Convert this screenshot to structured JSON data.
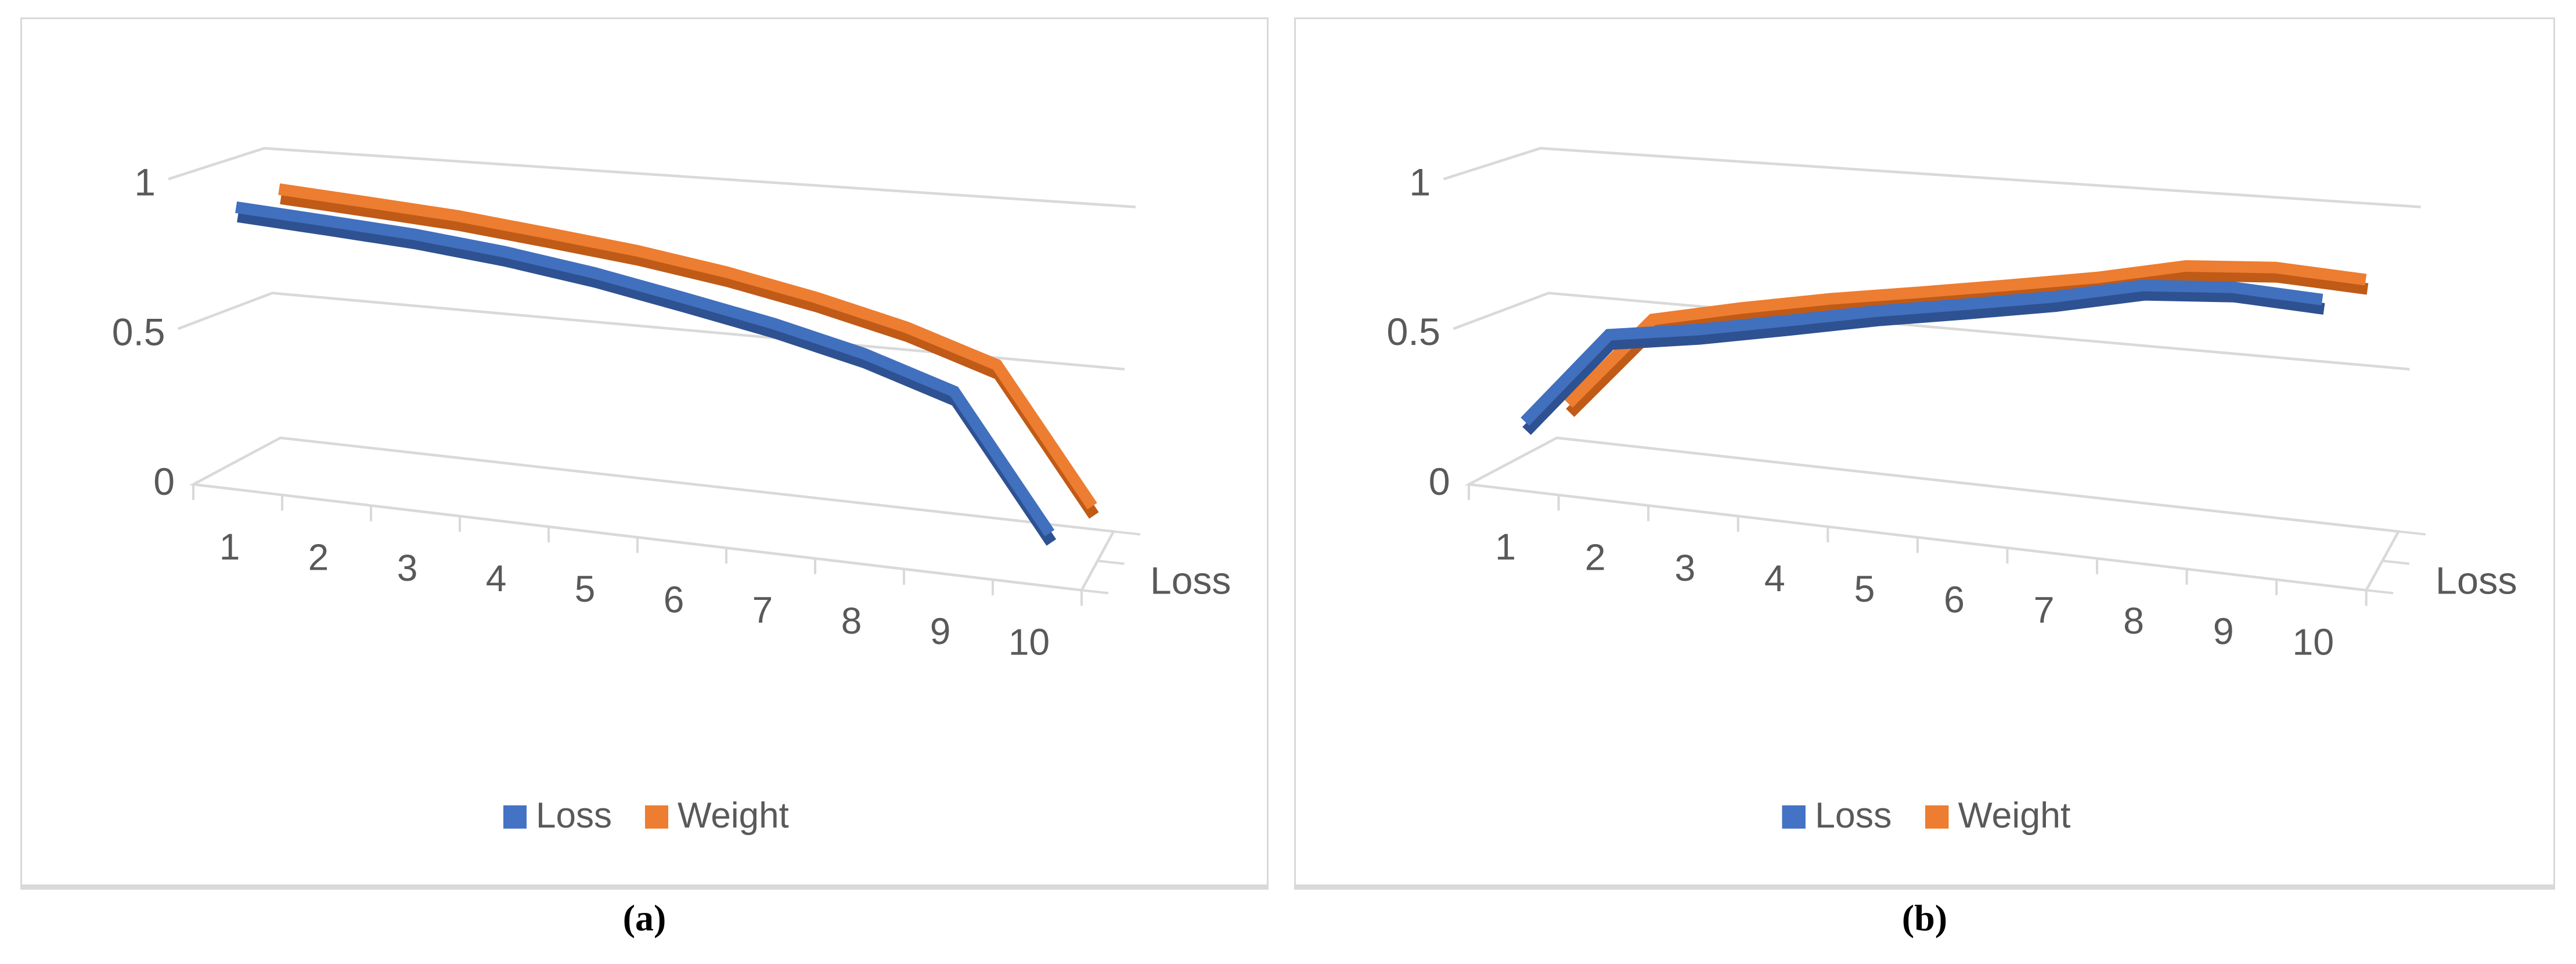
{
  "figure": {
    "background": "#ffffff",
    "panel_border_color": "#d9d9d9"
  },
  "colors": {
    "axis_text": "#595959",
    "gridline": "#d9d9d9",
    "loss_series": "#4472C4",
    "weight_series": "#ED7D31"
  },
  "chart_data": [
    {
      "type": "line",
      "projection": "3d",
      "caption": "(a)",
      "categories": [
        "1",
        "2",
        "3",
        "4",
        "5",
        "6",
        "7",
        "8",
        "9",
        "10"
      ],
      "value_axis": {
        "tick_labels": [
          "0",
          "0.5",
          "1"
        ],
        "range": [
          0,
          1
        ],
        "grid": true
      },
      "depth_axis_label": "Loss",
      "legend_position": "bottom",
      "series": [
        {
          "name": "Loss",
          "color": "#4170BE",
          "shade": "#2E5191",
          "legend_color": "#4472C4",
          "values": [
            0.93,
            0.9,
            0.87,
            0.83,
            0.78,
            0.72,
            0.66,
            0.59,
            0.5,
            0.12
          ]
        },
        {
          "name": "Weight",
          "color": "#ED7D31",
          "shade": "#C05A17",
          "legend_color": "#ED7D31",
          "values": [
            0.96,
            0.93,
            0.9,
            0.86,
            0.82,
            0.77,
            0.71,
            0.64,
            0.55,
            0.17
          ]
        }
      ]
    },
    {
      "type": "line",
      "projection": "3d",
      "caption": "(b)",
      "categories": [
        "1",
        "2",
        "3",
        "4",
        "5",
        "6",
        "7",
        "8",
        "9",
        "10"
      ],
      "value_axis": {
        "tick_labels": [
          "0",
          "0.5",
          "1"
        ],
        "range": [
          0,
          1
        ],
        "grid": true
      },
      "depth_axis_label": "Loss",
      "legend_position": "bottom",
      "series": [
        {
          "name": "Loss",
          "color": "#4170BE",
          "shade": "#2E5191",
          "legend_color": "#4472C4",
          "values": [
            0.2,
            0.52,
            0.56,
            0.61,
            0.66,
            0.7,
            0.74,
            0.79,
            0.8,
            0.78
          ]
        },
        {
          "name": "Weight",
          "color": "#ED7D31",
          "shade": "#C05A17",
          "legend_color": "#ED7D31",
          "values": [
            0.23,
            0.54,
            0.6,
            0.65,
            0.69,
            0.73,
            0.77,
            0.82,
            0.83,
            0.81
          ]
        }
      ]
    }
  ]
}
